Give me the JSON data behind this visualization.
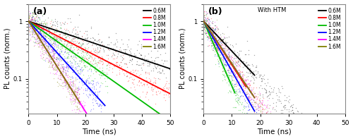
{
  "panel_a_label": "(a)",
  "panel_b_label": "(b)",
  "xlabel": "Time (ns)",
  "ylabel": "PL counts (norm.)",
  "xlim": [
    0,
    50
  ],
  "ylim_log": [
    0.025,
    2.0
  ],
  "legend_labels": [
    "0.6M",
    "0.8M",
    "1.0M",
    "1.2M",
    "1.4M",
    "1.6M"
  ],
  "colors": [
    "#000000",
    "#ff0000",
    "#00bb00",
    "#0000ff",
    "#ff00ff",
    "#808000"
  ],
  "panel_b_annotation": "With HTM",
  "background_color": "#ffffff",
  "panel_a_decay": [
    0.038,
    0.058,
    0.08,
    0.125,
    0.18,
    0.18
  ],
  "panel_a_t_end": [
    50,
    50,
    50,
    27,
    22,
    18
  ],
  "panel_a_noise_t_end": [
    50,
    50,
    28,
    26,
    20,
    18
  ],
  "panel_b_decay": [
    0.12,
    0.175,
    0.26,
    0.2,
    0.17,
    0.17
  ],
  "panel_b_t_end": [
    18,
    15,
    11,
    18,
    18,
    18
  ],
  "panel_b_noise_t_end": [
    38,
    32,
    22,
    35,
    32,
    44
  ]
}
